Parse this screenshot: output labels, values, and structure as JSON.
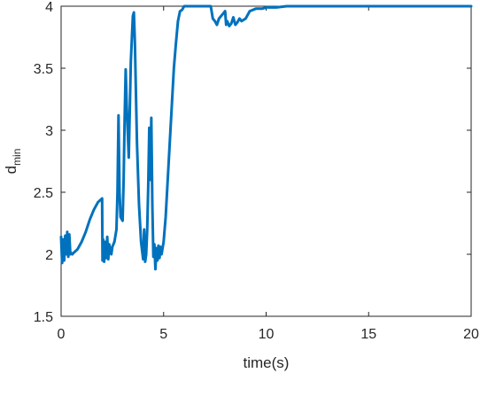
{
  "chart_data": {
    "type": "line",
    "title": "",
    "xlabel": "time(s)",
    "ylabel": {
      "main": "d",
      "subscript": "min"
    },
    "xlim": [
      0,
      20
    ],
    "ylim": [
      1.5,
      4
    ],
    "xticks": [
      0,
      5,
      10,
      15,
      20
    ],
    "xtick_labels": [
      "0",
      "5",
      "10",
      "15",
      "20"
    ],
    "yticks": [
      1.5,
      2,
      2.5,
      3,
      3.5,
      4
    ],
    "ytick_labels": [
      "1.5",
      "2",
      "2.5",
      "3",
      "3.5",
      "4"
    ],
    "grid": false,
    "box": true,
    "colors": {
      "line": "#0072BD",
      "axis": "#262626"
    },
    "series": [
      {
        "x": [
          0,
          0.05,
          0.1,
          0.15,
          0.2,
          0.25,
          0.3,
          0.35,
          0.4,
          0.45,
          0.5,
          0.55,
          0.6,
          0.8,
          1.0,
          1.2,
          1.4,
          1.6,
          1.8,
          2.0,
          2.02,
          2.05,
          2.1,
          2.15,
          2.2,
          2.25,
          2.3,
          2.35,
          2.4,
          2.45,
          2.5,
          2.6,
          2.7,
          2.75,
          2.8,
          2.85,
          2.9,
          3.0,
          3.05,
          3.1,
          3.15,
          3.2,
          3.3,
          3.4,
          3.5,
          3.55,
          3.6,
          3.65,
          3.7,
          3.8,
          3.9,
          4.0,
          4.05,
          4.1,
          4.15,
          4.2,
          4.25,
          4.3,
          4.35,
          4.4,
          4.45,
          4.5,
          4.55,
          4.6,
          4.65,
          4.7,
          4.75,
          4.8,
          4.85,
          4.9,
          5.0,
          5.1,
          5.2,
          5.3,
          5.4,
          5.5,
          5.6,
          5.7,
          5.8,
          5.9,
          6.0,
          6.3,
          6.6,
          7.0,
          7.3,
          7.4,
          7.5,
          7.6,
          7.7,
          7.8,
          7.9,
          8.0,
          8.05,
          8.1,
          8.2,
          8.3,
          8.4,
          8.5,
          8.6,
          8.7,
          8.8,
          9.0,
          9.2,
          9.5,
          9.8,
          10.0,
          10.5,
          11.0,
          12.0,
          14.0,
          16.0,
          18.0,
          20.0
        ],
        "values": [
          2.14,
          1.93,
          2.12,
          1.95,
          2.15,
          2.0,
          2.18,
          1.98,
          2.16,
          2.0,
          2.01,
          2.0,
          2.01,
          2.04,
          2.1,
          2.18,
          2.28,
          2.36,
          2.42,
          2.45,
          1.95,
          2.12,
          1.94,
          2.1,
          1.97,
          2.14,
          1.96,
          2.08,
          2.02,
          2.0,
          2.06,
          2.1,
          2.2,
          2.5,
          3.12,
          2.5,
          2.3,
          2.27,
          2.6,
          3.1,
          3.49,
          3.2,
          2.78,
          3.55,
          3.92,
          3.95,
          3.7,
          3.3,
          2.9,
          2.4,
          2.1,
          1.96,
          2.2,
          1.94,
          2.0,
          2.2,
          2.55,
          3.02,
          2.6,
          3.1,
          2.4,
          1.98,
          2.08,
          1.88,
          2.05,
          1.95,
          2.07,
          1.97,
          2.06,
          2.0,
          2.1,
          2.3,
          2.6,
          2.9,
          3.2,
          3.5,
          3.7,
          3.88,
          3.96,
          3.97,
          4.0,
          4.0,
          4.0,
          4.0,
          4.0,
          3.9,
          3.88,
          3.85,
          3.9,
          3.92,
          3.94,
          3.96,
          3.85,
          3.88,
          3.84,
          3.86,
          3.91,
          3.85,
          3.87,
          3.9,
          3.88,
          3.9,
          3.96,
          3.98,
          3.98,
          3.99,
          3.99,
          4.0,
          4.0,
          4.0,
          4.0,
          4.0,
          4.0
        ]
      }
    ]
  }
}
